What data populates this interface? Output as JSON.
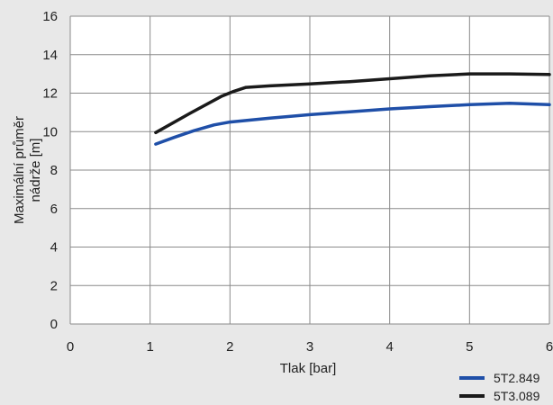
{
  "chart_data": {
    "type": "line",
    "title": "",
    "xlabel": "Tlak [bar]",
    "ylabel_lines": [
      "Maximální průměr",
      "nádrže [m]"
    ],
    "xlim": [
      0,
      6
    ],
    "ylim": [
      0,
      16
    ],
    "x_ticks": [
      0,
      1,
      2,
      3,
      4,
      5,
      6
    ],
    "y_ticks": [
      0,
      2,
      4,
      6,
      8,
      10,
      12,
      14,
      16
    ],
    "grid": true,
    "legend_position": "bottom-right",
    "series": [
      {
        "name": "5T2.849",
        "color": "#1f4fa8",
        "points": [
          [
            1.07,
            9.35
          ],
          [
            1.3,
            9.7
          ],
          [
            1.55,
            10.05
          ],
          [
            1.8,
            10.35
          ],
          [
            2.0,
            10.5
          ],
          [
            2.5,
            10.7
          ],
          [
            3.0,
            10.88
          ],
          [
            3.5,
            11.03
          ],
          [
            4.0,
            11.18
          ],
          [
            4.5,
            11.3
          ],
          [
            5.0,
            11.4
          ],
          [
            5.5,
            11.47
          ],
          [
            6.0,
            11.4
          ]
        ]
      },
      {
        "name": "5T3.089",
        "color": "#1a1a1a",
        "points": [
          [
            1.07,
            9.95
          ],
          [
            1.5,
            10.95
          ],
          [
            1.9,
            11.85
          ],
          [
            2.05,
            12.1
          ],
          [
            2.2,
            12.3
          ],
          [
            2.5,
            12.38
          ],
          [
            3.0,
            12.48
          ],
          [
            3.5,
            12.6
          ],
          [
            4.0,
            12.75
          ],
          [
            4.5,
            12.9
          ],
          [
            5.0,
            13.0
          ],
          [
            5.5,
            13.0
          ],
          [
            6.0,
            12.97
          ]
        ]
      }
    ]
  }
}
